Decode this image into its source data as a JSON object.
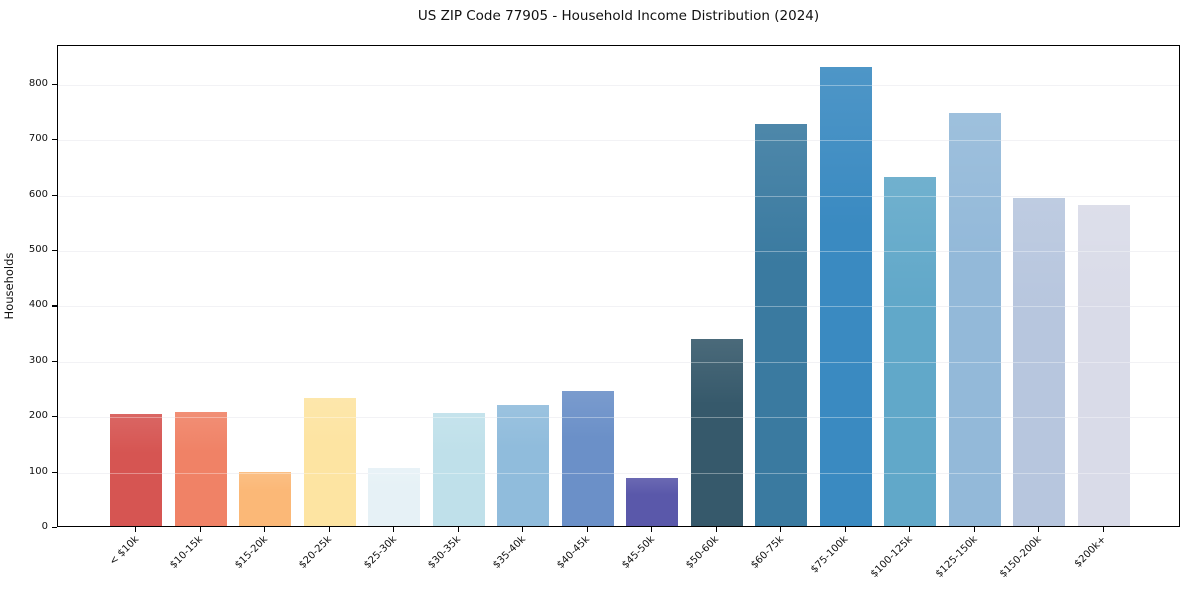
{
  "figure": {
    "background_color": "#ffffff",
    "spine_color": "#000000",
    "grid_color": "#ebebf0",
    "text_color": "#111111"
  },
  "chart_data": {
    "type": "bar",
    "title": "US ZIP Code 77905 - Household Income Distribution (2024)",
    "xlabel": "",
    "ylabel": "Households",
    "categories": [
      "< $10k",
      "$10-15k",
      "$15-20k",
      "$20-25k",
      "$25-30k",
      "$30-35k",
      "$35-40k",
      "$40-45k",
      "$45-50k",
      "$50-60k",
      "$60-75k",
      "$75-100k",
      "$100-125k",
      "$125-150k",
      "$150-200k",
      "$200k+"
    ],
    "values": [
      203,
      206,
      98,
      231,
      104,
      204,
      219,
      244,
      87,
      338,
      725,
      828,
      630,
      745,
      592,
      580
    ],
    "bar_colors": [
      "#d65552",
      "#f08266",
      "#fbb877",
      "#fde4a2",
      "#e6f1f6",
      "#bfe0ea",
      "#90bcdc",
      "#6b90c8",
      "#5a58aa",
      "#36596b",
      "#3a7aa0",
      "#3a8ac1",
      "#61a8c9",
      "#93b9d9",
      "#b7c6de",
      "#d9dbe8"
    ],
    "yticks": [
      0,
      100,
      200,
      300,
      400,
      500,
      600,
      700,
      800
    ],
    "ylim": [
      0,
      870
    ],
    "grid": true,
    "legend_position": "none"
  }
}
